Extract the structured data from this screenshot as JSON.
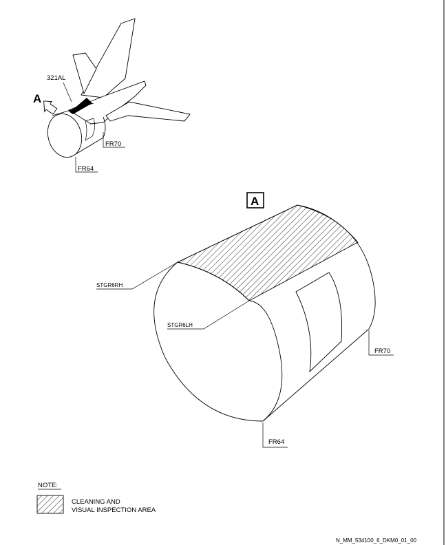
{
  "aircraft_view": {
    "zone_label": "321AL",
    "view_label": "A",
    "frame_aft": "FR70",
    "frame_fwd": "FR64"
  },
  "detail_view": {
    "view_label": "A",
    "stringer_rh": "STGR6RH",
    "stringer_lh": "STGR6LH",
    "frame_aft": "FR70",
    "frame_fwd": "FR64"
  },
  "legend": {
    "heading": "NOTE:",
    "line1": "CLEANING AND",
    "line2": "VISUAL INSPECTION AREA"
  },
  "footer": {
    "reference": "N_MM_534100_6_DKM0_01_00"
  }
}
